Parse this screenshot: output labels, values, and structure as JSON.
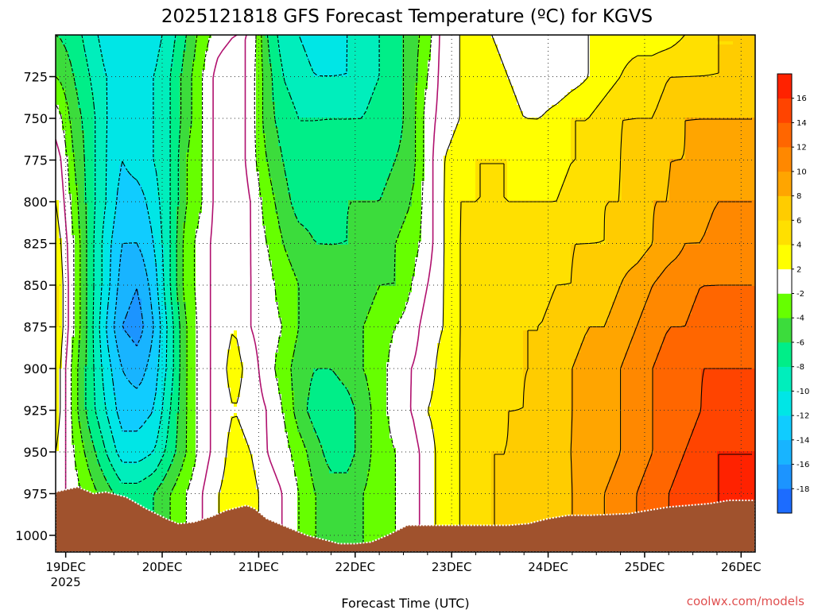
{
  "chart_data": {
    "type": "heatmap",
    "title": "2025121818 GFS Forecast Temperature (ºC) for KGVS",
    "xlabel": "Forecast Time (UTC)",
    "ylabel": "",
    "credit": "coolwx.com/models",
    "x_tick_labels": [
      "19DEC",
      "20DEC",
      "21DEC",
      "22DEC",
      "23DEC",
      "24DEC",
      "25DEC",
      "26DEC"
    ],
    "x_tick_sublabel": "2025",
    "x_range_hours_from_19DEC": [
      -2.5,
      171.5
    ],
    "y_levels_hPa": [
      725,
      750,
      775,
      800,
      825,
      850,
      875,
      900,
      925,
      950,
      975,
      1000
    ],
    "y_range_hPa": [
      700,
      1010
    ],
    "colorbar_ticks": [
      -18,
      -16,
      -14,
      -12,
      -10,
      -8,
      -6,
      -4,
      -2,
      2,
      4,
      6,
      8,
      10,
      12,
      14,
      16
    ],
    "colorbar_colors": [
      "#1c6cff",
      "#1c94ff",
      "#18b4ff",
      "#10ccff",
      "#00e6e6",
      "#00eebc",
      "#00ee88",
      "#3cdc3c",
      "#66ff00",
      "#ffffff",
      "#ffff00",
      "#ffe000",
      "#ffcc00",
      "#ffa500",
      "#ff8800",
      "#ff6600",
      "#ff4400",
      "#ff2200"
    ],
    "ground_color": "#a0522d",
    "surface_pressure_hPa": [
      [
        -2.5,
        974
      ],
      [
        3,
        971
      ],
      [
        7,
        975
      ],
      [
        10,
        974
      ],
      [
        15,
        977
      ],
      [
        20,
        984
      ],
      [
        25,
        990
      ],
      [
        28,
        993
      ],
      [
        32,
        992
      ],
      [
        36,
        989
      ],
      [
        40,
        985
      ],
      [
        45,
        982
      ],
      [
        47,
        984
      ],
      [
        50,
        990
      ],
      [
        55,
        995
      ],
      [
        60,
        1000
      ],
      [
        65,
        1003
      ],
      [
        68,
        1005
      ],
      [
        72,
        1005
      ],
      [
        76,
        1004
      ],
      [
        80,
        1000
      ],
      [
        85,
        994
      ],
      [
        90,
        994
      ],
      [
        100,
        994
      ],
      [
        110,
        994
      ],
      [
        115,
        993
      ],
      [
        120,
        990
      ],
      [
        125,
        988
      ],
      [
        130,
        988
      ],
      [
        140,
        987
      ],
      [
        150,
        983
      ],
      [
        160,
        981
      ],
      [
        165,
        979
      ],
      [
        171.5,
        979
      ]
    ],
    "temperature_grid": {
      "x_hours": [
        -2,
        2,
        6,
        10,
        14,
        18,
        22,
        26,
        30,
        34,
        38,
        42,
        46,
        50,
        54,
        58,
        62,
        66,
        70,
        74,
        78,
        82,
        86,
        90,
        94,
        98,
        102,
        106,
        110,
        114,
        118,
        122,
        126,
        130,
        134,
        138,
        142,
        146,
        150,
        154,
        158,
        162,
        166,
        170
      ],
      "y_hPa": [
        700,
        725,
        750,
        775,
        800,
        825,
        850,
        875,
        900,
        925,
        950,
        975,
        1000
      ],
      "values_degC": [
        [
          -6,
          -7,
          -9,
          -11,
          -12,
          -12,
          -11,
          -9,
          -6,
          -3,
          -1,
          0,
          0,
          -6,
          -9,
          -10,
          -11,
          -11,
          -10,
          -9,
          -8,
          -7,
          -5,
          -3,
          1,
          2,
          3,
          2,
          1,
          0,
          0,
          0,
          1,
          2,
          3,
          3,
          3,
          3,
          3,
          4,
          5,
          6,
          6,
          7
        ],
        [
          -4,
          -6,
          -8,
          -10,
          -11,
          -11,
          -10,
          -8,
          -5,
          -2,
          1,
          2,
          -1,
          -5,
          -8,
          -9,
          -10,
          -10,
          -10,
          -9,
          -8,
          -7,
          -5,
          -2,
          1,
          2,
          3,
          3,
          2,
          1,
          0,
          0,
          1,
          2,
          3,
          4,
          5,
          5,
          6,
          6,
          6,
          6,
          6,
          6
        ],
        [
          -1,
          -5,
          -7,
          -10,
          -11,
          -11,
          -10,
          -8,
          -5,
          -2,
          1,
          2,
          -1,
          -5,
          -7,
          -8,
          -8,
          -8,
          -8,
          -8,
          -7,
          -7,
          -5,
          -1,
          1,
          2,
          3,
          3,
          3,
          2,
          2,
          3,
          4,
          4,
          5,
          6,
          6,
          6,
          7,
          8,
          8,
          8,
          8,
          8
        ],
        [
          1,
          -4,
          -7,
          -10,
          -12,
          -11,
          -10,
          -8,
          -4,
          -2,
          1,
          2,
          -1,
          -4,
          -6,
          -8,
          -8,
          -7,
          -7,
          -7,
          -7,
          -6,
          -5,
          -1,
          2,
          3,
          4,
          4,
          4,
          3,
          3,
          3,
          4,
          4,
          5,
          6,
          7,
          7,
          8,
          8,
          9,
          9,
          9,
          9
        ],
        [
          2,
          -3,
          -7,
          -10,
          -13,
          -13,
          -11,
          -8,
          -4,
          -2,
          1,
          2,
          0,
          -3,
          -5,
          -7,
          -7,
          -7,
          -6,
          -6,
          -6,
          -5,
          -4,
          -1,
          2,
          4,
          4,
          4,
          4,
          4,
          4,
          4,
          5,
          5,
          6,
          6,
          7,
          8,
          8,
          9,
          9,
          10,
          10,
          10
        ],
        [
          3,
          -2,
          -7,
          -11,
          -14,
          -14,
          -12,
          -8,
          -3,
          -1,
          1,
          2,
          0,
          -2,
          -4,
          -5,
          -6,
          -6,
          -6,
          -5,
          -5,
          -4,
          -3,
          -1,
          2,
          4,
          5,
          5,
          5,
          5,
          5,
          5,
          6,
          6,
          6,
          7,
          7,
          8,
          9,
          10,
          10,
          11,
          11,
          11
        ],
        [
          4,
          -2,
          -7,
          -11,
          -15,
          -16,
          -13,
          -8,
          -3,
          -1,
          1,
          2,
          0,
          -1,
          -3,
          -4,
          -5,
          -6,
          -5,
          -5,
          -4,
          -4,
          -2,
          0,
          2,
          4,
          5,
          5,
          5,
          5,
          5,
          6,
          6,
          7,
          7,
          8,
          9,
          10,
          11,
          11,
          12,
          12,
          12,
          12
        ],
        [
          4,
          -2,
          -7,
          -12,
          -16,
          -17,
          -14,
          -9,
          -4,
          -1,
          1,
          2,
          0,
          -1,
          -2,
          -4,
          -5,
          -6,
          -5,
          -4,
          -3,
          -2,
          -1,
          1,
          2,
          4,
          5,
          5,
          5,
          6,
          6,
          7,
          7,
          8,
          8,
          9,
          10,
          11,
          12,
          12,
          13,
          13,
          13,
          13
        ],
        [
          3,
          -3,
          -7,
          -11,
          -14,
          -15,
          -13,
          -9,
          -4,
          -1,
          1,
          3,
          1,
          -1,
          -3,
          -5,
          -6,
          -6,
          -5,
          -4,
          -3,
          -1,
          0,
          1,
          3,
          4,
          5,
          5,
          5,
          6,
          6,
          7,
          8,
          9,
          9,
          10,
          11,
          12,
          13,
          13,
          14,
          14,
          14,
          14
        ],
        [
          3,
          -3,
          -7,
          -10,
          -13,
          -13,
          -12,
          -8,
          -4,
          -1,
          1,
          2,
          1,
          0,
          -2,
          -5,
          -7,
          -8,
          -7,
          -5,
          -3,
          -1,
          0,
          2,
          3,
          4,
          5,
          5,
          6,
          6,
          7,
          7,
          8,
          9,
          9,
          10,
          11,
          12,
          13,
          13,
          14,
          15,
          15,
          15
        ],
        [
          2,
          -2,
          -5,
          -8,
          -11,
          -11,
          -10,
          -7,
          -4,
          -1,
          1,
          3,
          2,
          0,
          -1,
          -3,
          -5,
          -7,
          -7,
          -5,
          -3,
          -2,
          -1,
          1,
          3,
          4,
          5,
          6,
          6,
          7,
          7,
          8,
          8,
          9,
          9,
          10,
          11,
          12,
          13,
          14,
          15,
          16,
          16,
          16
        ],
        [
          1,
          -1,
          -3,
          -5,
          -7,
          -7,
          -6,
          -4,
          -2,
          0,
          2,
          3,
          3,
          1,
          0,
          -2,
          -4,
          -5,
          -5,
          -4,
          -3,
          -2,
          -1,
          1,
          3,
          4,
          5,
          6,
          6,
          7,
          7,
          7,
          8,
          9,
          10,
          11,
          12,
          13,
          14,
          15,
          15,
          16,
          16,
          16
        ],
        [
          1,
          -1,
          -3,
          -5,
          -7,
          -7,
          -6,
          -4,
          -2,
          0,
          2,
          3,
          3,
          1,
          0,
          -2,
          -4,
          -5,
          -5,
          -4,
          -3,
          -2,
          -1,
          1,
          3,
          4,
          5,
          6,
          6,
          7,
          7,
          7,
          8,
          9,
          10,
          11,
          12,
          13,
          14,
          15,
          15,
          16,
          16,
          16
        ]
      ]
    }
  }
}
